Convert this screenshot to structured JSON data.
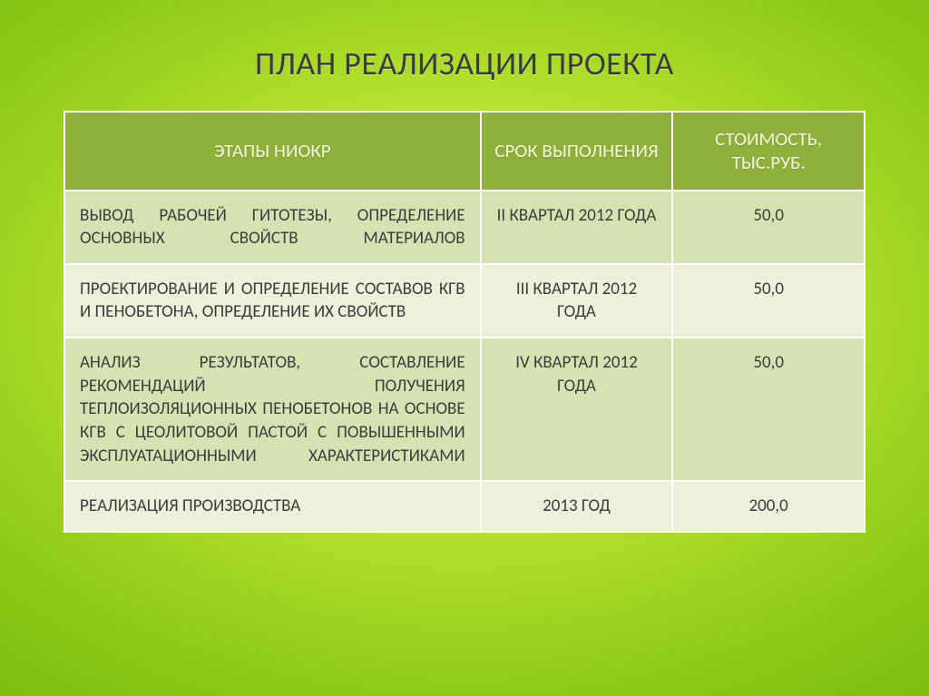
{
  "title": "ПЛАН РЕАЛИЗАЦИИ ПРОЕКТА",
  "table": {
    "headers": {
      "stage": "ЭТАПЫ НИОКР",
      "term": "СРОК ВЫПОЛНЕНИЯ",
      "cost": "СТОИМОСТЬ, ТЫС.РУБ."
    },
    "rows": [
      {
        "stage": "ВЫВОД РАБОЧЕЙ ГИТОТЕЗЫ, ОПРЕДЕЛЕНИЕ ОСНОВНЫХ  СВОЙСТВ МАТЕРИАЛОВ",
        "term": "II КВАРТАЛ 2012 ГОДА",
        "cost": "50,0"
      },
      {
        "stage": "ПРОЕКТИРОВАНИЕ И ОПРЕДЕЛЕНИЕ СОСТАВОВ КГВ И ПЕНОБЕТОНА, ОПРЕДЕЛЕНИЕ ИХ СВОЙСТВ",
        "term": "III КВАРТАЛ 2012 ГОДА",
        "cost": "50,0"
      },
      {
        "stage": "АНАЛИЗ РЕЗУЛЬТАТОВ, СОСТАВЛЕНИЕ РЕКОМЕНДАЦИЙ ПОЛУЧЕНИЯ ТЕПЛОИЗОЛЯЦИОННЫХ ПЕНОБЕТОНОВ НА ОСНОВЕ КГВ С ЦЕОЛИТОВОЙ ПАСТОЙ С ПОВЫШЕННЫМИ ЭКСПЛУАТАЦИОННЫМИ ХАРАКТЕРИСТИКАМИ",
        "term": "IV КВАРТАЛ 2012 ГОДА",
        "cost": "50,0"
      },
      {
        "stage": "РЕАЛИЗАЦИЯ ПРОИЗВОДСТВА",
        "term": "2013 ГОД",
        "cost": "200,0"
      }
    ]
  },
  "style": {
    "title_fontsize": 36,
    "header_bg": "#8fb03a",
    "header_fg": "#f4f8e0",
    "row_odd_bg": "#d5e3b3",
    "row_even_bg": "#ebf1db",
    "cell_fontsize": 19,
    "border_color": "#ffffff",
    "slide_bg_inner": "#d4f24a",
    "slide_bg_outer": "#6fb60e"
  }
}
